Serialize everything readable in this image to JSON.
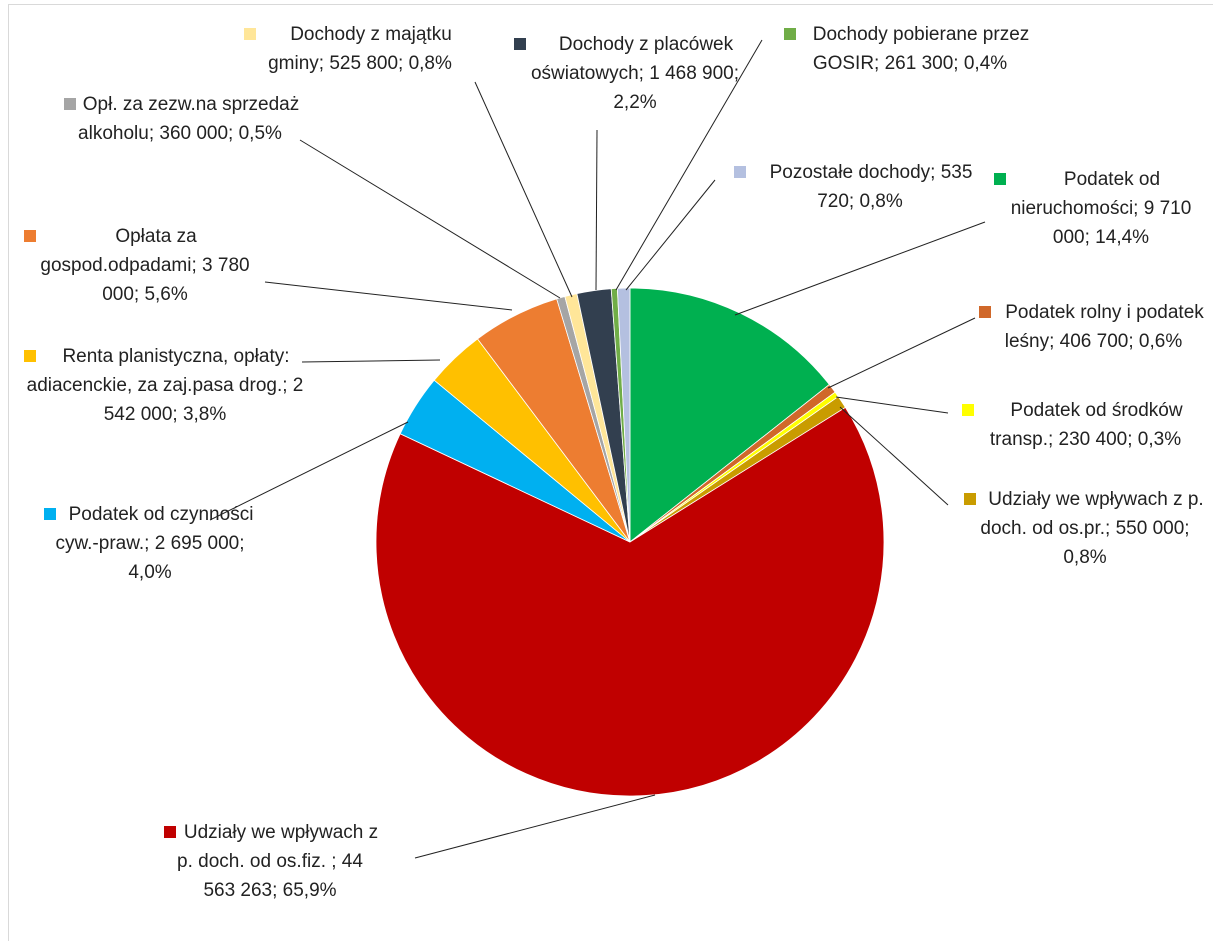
{
  "chart_data": {
    "type": "pie",
    "values": [
      9710000,
      406700,
      230400,
      550000,
      44563263,
      2695000,
      2542000,
      3780000,
      360000,
      525800,
      1468900,
      261300,
      535720
    ],
    "value_labels": [
      "Podatek od nieruchomości; 9 710 000; 14,4%",
      "Podatek rolny i podatek leśny; 406 700; 0,6%",
      "Podatek od środków transp.; 230 400; 0,3%",
      "Udziały we wpływach z p. doch. od os.pr.; 550 000; 0,8%",
      "Udziały we wpływach z p. doch. od os.fiz. ; 44 563 263; 65,9%",
      "Podatek od czynności cyw.-praw.; 2 695 000; 4,0%",
      "Renta planistyczna, opłaty: adiacenckie, za zaj.pasa drog.; 2 542 000; 3,8%",
      "Opłata za gospod.odpadami; 3 780 000; 5,6%",
      "Opł. za zezw.na sprzedaż alkoholu; 360 000; 0,5%",
      "Dochody z majątku gminy; 525 800; 0,8%",
      "Dochody z placówek oświatowych; 1 468 900; 2,2%",
      "Dochody pobierane przez GOSIR; 261 300; 0,4%",
      "Pozostałe dochody; 535 720; 0,8%"
    ],
    "colors": [
      "#00b050",
      "#d0682a",
      "#ffff00",
      "#c99c00",
      "#c00000",
      "#00b0f0",
      "#ffc000",
      "#ed7d31",
      "#a5a5a5",
      "#ffe699",
      "#323f4f",
      "#70ad47",
      "#b4c0e0"
    ]
  }
}
